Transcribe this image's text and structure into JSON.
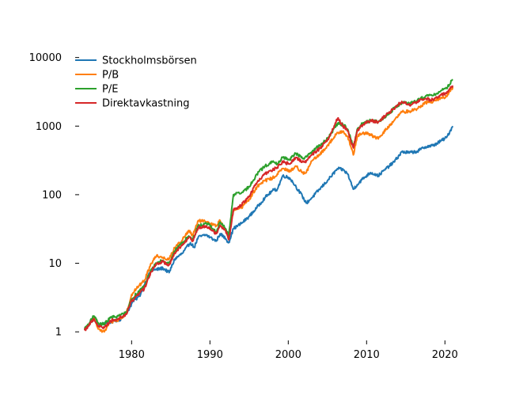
{
  "chart_data": {
    "type": "line",
    "title": "",
    "xlabel": "",
    "ylabel": "",
    "yscale": "log",
    "xlim": [
      1973.3,
      2022.8
    ],
    "ylim": [
      0.75,
      14000
    ],
    "xticks": [
      1980,
      1990,
      2000,
      2010,
      2020
    ],
    "xtick_labels": [
      "1980",
      "1990",
      "2000",
      "2010",
      "2020"
    ],
    "yticks": [
      1,
      10,
      100,
      1000,
      10000
    ],
    "ytick_labels": [
      "1",
      "10",
      "100",
      "1000",
      "10000"
    ],
    "grid": false,
    "legend_position": "upper-left",
    "series": [
      {
        "name": "Stockholmsbörsen",
        "color": "#1f77b4",
        "points": [
          [
            1974.0,
            1.05
          ],
          [
            1975.2,
            1.6
          ],
          [
            1975.8,
            1.2
          ],
          [
            1976.5,
            1.35
          ],
          [
            1977.5,
            1.4
          ],
          [
            1978.5,
            1.5
          ],
          [
            1979.5,
            2.0
          ],
          [
            1980.2,
            2.8
          ],
          [
            1981.0,
            3.3
          ],
          [
            1981.6,
            4.8
          ],
          [
            1982.5,
            8.0
          ],
          [
            1983.0,
            8.0
          ],
          [
            1984.0,
            8.5
          ],
          [
            1984.8,
            7.3
          ],
          [
            1985.5,
            11.5
          ],
          [
            1986.5,
            14.0
          ],
          [
            1987.5,
            20.0
          ],
          [
            1988.0,
            17.0
          ],
          [
            1988.5,
            24.0
          ],
          [
            1989.5,
            26.0
          ],
          [
            1990.0,
            24.0
          ],
          [
            1990.8,
            21.0
          ],
          [
            1991.3,
            27.0
          ],
          [
            1992.0,
            23.0
          ],
          [
            1992.4,
            20.0
          ],
          [
            1993.0,
            32.0
          ],
          [
            1994.0,
            38.0
          ],
          [
            1995.0,
            48.0
          ],
          [
            1996.0,
            65.0
          ],
          [
            1997.0,
            90.0
          ],
          [
            1998.0,
            115.0
          ],
          [
            1998.6,
            120.0
          ],
          [
            1999.3,
            190.0
          ],
          [
            2000.2,
            175.0
          ],
          [
            2001.0,
            130.0
          ],
          [
            2001.8,
            95.0
          ],
          [
            2002.3,
            75.0
          ],
          [
            2003.0,
            90.0
          ],
          [
            2004.0,
            120.0
          ],
          [
            2005.0,
            160.0
          ],
          [
            2006.3,
            240.0
          ],
          [
            2007.0,
            230.0
          ],
          [
            2007.6,
            200.0
          ],
          [
            2008.3,
            120.0
          ],
          [
            2008.8,
            140.0
          ],
          [
            2009.5,
            170.0
          ],
          [
            2010.5,
            210.0
          ],
          [
            2011.5,
            190.0
          ],
          [
            2012.5,
            240.0
          ],
          [
            2013.5,
            300.0
          ],
          [
            2014.5,
            420.0
          ],
          [
            2015.5,
            410.0
          ],
          [
            2016.5,
            430.0
          ],
          [
            2017.5,
            500.0
          ],
          [
            2018.5,
            520.0
          ],
          [
            2019.5,
            610.0
          ],
          [
            2020.2,
            680.0
          ],
          [
            2021.0,
            1000.0
          ]
        ]
      },
      {
        "name": "P/B",
        "color": "#ff7f0e",
        "points": [
          [
            1974.0,
            1.05
          ],
          [
            1975.2,
            1.6
          ],
          [
            1975.8,
            1.1
          ],
          [
            1976.5,
            1.0
          ],
          [
            1977.3,
            1.4
          ],
          [
            1978.3,
            1.5
          ],
          [
            1979.3,
            1.8
          ],
          [
            1980.0,
            3.5
          ],
          [
            1981.0,
            4.8
          ],
          [
            1981.6,
            5.5
          ],
          [
            1982.5,
            10.0
          ],
          [
            1983.2,
            13.0
          ],
          [
            1984.0,
            12.0
          ],
          [
            1984.8,
            11.5
          ],
          [
            1985.5,
            17.0
          ],
          [
            1986.5,
            22.0
          ],
          [
            1987.3,
            30.0
          ],
          [
            1987.8,
            25.0
          ],
          [
            1988.5,
            42.0
          ],
          [
            1989.5,
            40.0
          ],
          [
            1990.0,
            38.0
          ],
          [
            1990.8,
            35.0
          ],
          [
            1991.3,
            42.0
          ],
          [
            1992.0,
            30.0
          ],
          [
            1992.4,
            25.0
          ],
          [
            1993.0,
            60.0
          ],
          [
            1994.0,
            65.0
          ],
          [
            1995.0,
            85.0
          ],
          [
            1996.0,
            130.0
          ],
          [
            1997.0,
            160.0
          ],
          [
            1998.0,
            175.0
          ],
          [
            1998.6,
            200.0
          ],
          [
            1999.3,
            240.0
          ],
          [
            2000.2,
            220.0
          ],
          [
            2001.0,
            260.0
          ],
          [
            2001.8,
            210.0
          ],
          [
            2002.3,
            210.0
          ],
          [
            2003.0,
            310.0
          ],
          [
            2004.0,
            380.0
          ],
          [
            2005.0,
            520.0
          ],
          [
            2006.3,
            800.0
          ],
          [
            2007.0,
            850.0
          ],
          [
            2007.6,
            700.0
          ],
          [
            2008.3,
            380.0
          ],
          [
            2008.8,
            700.0
          ],
          [
            2009.5,
            800.0
          ],
          [
            2010.5,
            750.0
          ],
          [
            2011.5,
            650.0
          ],
          [
            2012.5,
            900.0
          ],
          [
            2013.5,
            1200.0
          ],
          [
            2014.5,
            1600.0
          ],
          [
            2015.5,
            1650.0
          ],
          [
            2016.5,
            1800.0
          ],
          [
            2017.5,
            2200.0
          ],
          [
            2018.5,
            2300.0
          ],
          [
            2019.5,
            2600.0
          ],
          [
            2020.2,
            2700.0
          ],
          [
            2021.0,
            3700.0
          ]
        ]
      },
      {
        "name": "P/E",
        "color": "#2ca02c",
        "points": [
          [
            1974.0,
            1.1
          ],
          [
            1975.2,
            1.7
          ],
          [
            1975.8,
            1.3
          ],
          [
            1976.5,
            1.3
          ],
          [
            1977.3,
            1.6
          ],
          [
            1978.3,
            1.7
          ],
          [
            1979.3,
            1.9
          ],
          [
            1980.0,
            3.0
          ],
          [
            1981.0,
            4.0
          ],
          [
            1981.6,
            4.5
          ],
          [
            1982.5,
            8.0
          ],
          [
            1983.2,
            10.0
          ],
          [
            1984.0,
            11.0
          ],
          [
            1984.8,
            10.0
          ],
          [
            1985.5,
            15.0
          ],
          [
            1986.5,
            20.0
          ],
          [
            1987.3,
            25.0
          ],
          [
            1987.8,
            22.0
          ],
          [
            1988.5,
            35.0
          ],
          [
            1989.5,
            38.0
          ],
          [
            1990.0,
            36.0
          ],
          [
            1990.8,
            28.0
          ],
          [
            1991.3,
            40.0
          ],
          [
            1992.0,
            32.0
          ],
          [
            1992.4,
            25.0
          ],
          [
            1993.0,
            100.0
          ],
          [
            1994.0,
            105.0
          ],
          [
            1995.0,
            130.0
          ],
          [
            1996.0,
            200.0
          ],
          [
            1997.0,
            260.0
          ],
          [
            1998.0,
            300.0
          ],
          [
            1998.6,
            280.0
          ],
          [
            1999.3,
            350.0
          ],
          [
            2000.2,
            330.0
          ],
          [
            2001.0,
            400.0
          ],
          [
            2001.8,
            340.0
          ],
          [
            2002.3,
            360.0
          ],
          [
            2003.0,
            420.0
          ],
          [
            2004.0,
            520.0
          ],
          [
            2005.0,
            650.0
          ],
          [
            2006.3,
            1100.0
          ],
          [
            2007.0,
            1050.0
          ],
          [
            2007.6,
            900.0
          ],
          [
            2008.3,
            500.0
          ],
          [
            2008.8,
            900.0
          ],
          [
            2009.5,
            1100.0
          ],
          [
            2010.5,
            1200.0
          ],
          [
            2011.5,
            1150.0
          ],
          [
            2012.5,
            1400.0
          ],
          [
            2013.5,
            1800.0
          ],
          [
            2014.5,
            2200.0
          ],
          [
            2015.5,
            2100.0
          ],
          [
            2016.5,
            2400.0
          ],
          [
            2017.5,
            2700.0
          ],
          [
            2018.5,
            2800.0
          ],
          [
            2019.5,
            3300.0
          ],
          [
            2020.2,
            3600.0
          ],
          [
            2021.0,
            4800.0
          ]
        ]
      },
      {
        "name": "Direktavkastning",
        "color": "#d62728",
        "points": [
          [
            1974.0,
            1.05
          ],
          [
            1975.2,
            1.55
          ],
          [
            1975.8,
            1.2
          ],
          [
            1976.5,
            1.15
          ],
          [
            1977.3,
            1.45
          ],
          [
            1978.3,
            1.55
          ],
          [
            1979.3,
            1.8
          ],
          [
            1980.0,
            2.8
          ],
          [
            1981.0,
            3.7
          ],
          [
            1981.6,
            4.2
          ],
          [
            1982.5,
            7.5
          ],
          [
            1983.2,
            10.0
          ],
          [
            1984.0,
            10.5
          ],
          [
            1984.8,
            9.5
          ],
          [
            1985.5,
            14.0
          ],
          [
            1986.5,
            19.0
          ],
          [
            1987.3,
            24.0
          ],
          [
            1987.8,
            21.0
          ],
          [
            1988.5,
            33.0
          ],
          [
            1989.5,
            35.0
          ],
          [
            1990.0,
            33.0
          ],
          [
            1990.8,
            27.0
          ],
          [
            1991.3,
            36.0
          ],
          [
            1992.0,
            30.0
          ],
          [
            1992.4,
            22.0
          ],
          [
            1993.0,
            60.0
          ],
          [
            1994.0,
            70.0
          ],
          [
            1995.0,
            95.0
          ],
          [
            1996.0,
            150.0
          ],
          [
            1997.0,
            200.0
          ],
          [
            1998.0,
            230.0
          ],
          [
            1998.6,
            250.0
          ],
          [
            1999.3,
            300.0
          ],
          [
            2000.2,
            280.0
          ],
          [
            2001.0,
            350.0
          ],
          [
            2001.8,
            300.0
          ],
          [
            2002.3,
            310.0
          ],
          [
            2003.0,
            380.0
          ],
          [
            2004.0,
            470.0
          ],
          [
            2005.0,
            620.0
          ],
          [
            2006.3,
            1300.0
          ],
          [
            2007.0,
            1000.0
          ],
          [
            2007.6,
            850.0
          ],
          [
            2008.3,
            480.0
          ],
          [
            2008.8,
            850.0
          ],
          [
            2009.5,
            1050.0
          ],
          [
            2010.5,
            1200.0
          ],
          [
            2011.5,
            1150.0
          ],
          [
            2012.5,
            1450.0
          ],
          [
            2013.5,
            1800.0
          ],
          [
            2014.5,
            2300.0
          ],
          [
            2015.5,
            2000.0
          ],
          [
            2016.5,
            2300.0
          ],
          [
            2017.5,
            2500.0
          ],
          [
            2018.5,
            2400.0
          ],
          [
            2019.5,
            2900.0
          ],
          [
            2020.2,
            3000.0
          ],
          [
            2021.0,
            3900.0
          ]
        ]
      }
    ]
  }
}
